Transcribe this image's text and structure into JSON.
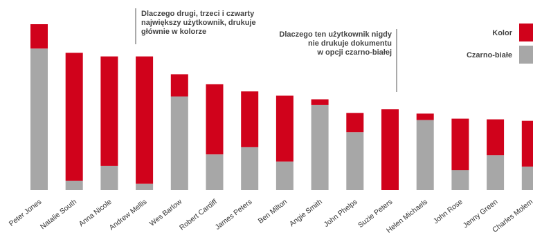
{
  "chart_data": {
    "type": "bar",
    "stacked": true,
    "categories": [
      "Peter Jones",
      "Natalie South",
      "Anna Nicole",
      "Andrew Mellis",
      "Wes Barlow",
      "Robert Cardiff",
      "James Peters",
      "Ben Milton",
      "Angie Smith",
      "John Phelps",
      "Suzie Peters",
      "Helen Michaels",
      "John Rose",
      "Jenny Green",
      "Charles Molem"
    ],
    "series": [
      {
        "name": "Czarno-białe",
        "color": "#a7a7a7",
        "values": [
          198,
          13,
          34,
          9,
          131,
          50,
          60,
          40,
          119,
          81,
          0,
          98,
          28,
          49,
          33
        ]
      },
      {
        "name": "Kolor",
        "color": "#d0021b",
        "values": [
          34,
          179,
          153,
          178,
          31,
          98,
          78,
          92,
          8,
          27,
          113,
          9,
          72,
          50,
          64
        ]
      }
    ],
    "legend": {
      "position": "top-right",
      "order": [
        "Kolor",
        "Czarno-białe"
      ]
    },
    "axes": {
      "show": false,
      "y_max": 232
    },
    "annotations": [
      {
        "id": "annotation-color-users",
        "lines": [
          "Dlaczego drugi, trzeci i czwarty",
          "największy użytkownik, drukuje",
          "głównie w kolorze"
        ],
        "target": "Andrew Mellis"
      },
      {
        "id": "annotation-no-bw",
        "lines": [
          "Dlaczego ten użytkownik nigdy",
          "nie drukuje dokumentu",
          "w opcji czarno-białej"
        ],
        "target": "Suzie Peters"
      }
    ]
  }
}
